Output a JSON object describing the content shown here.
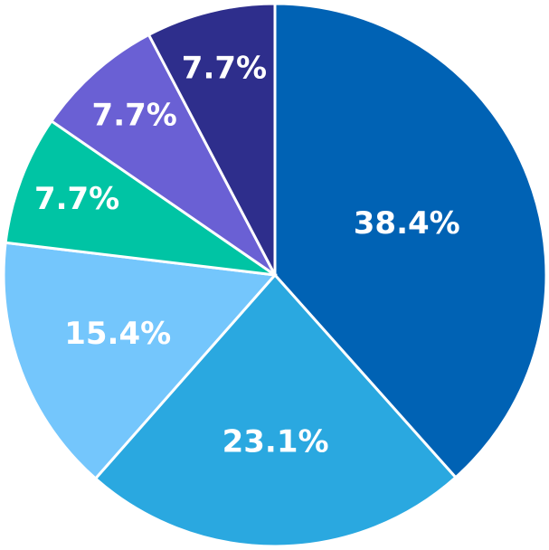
{
  "chart_data": {
    "type": "pie",
    "values": [
      38.4,
      23.1,
      15.4,
      7.7,
      7.7,
      7.7
    ],
    "value_labels": [
      "38.4%",
      "23.1%",
      "15.4%",
      "7.7%",
      "7.7%",
      "7.7%"
    ],
    "colors": [
      "#0062b4",
      "#2aa8e0",
      "#74c6fc",
      "#00c4a4",
      "#6a60d4",
      "#2e2e8c"
    ]
  }
}
